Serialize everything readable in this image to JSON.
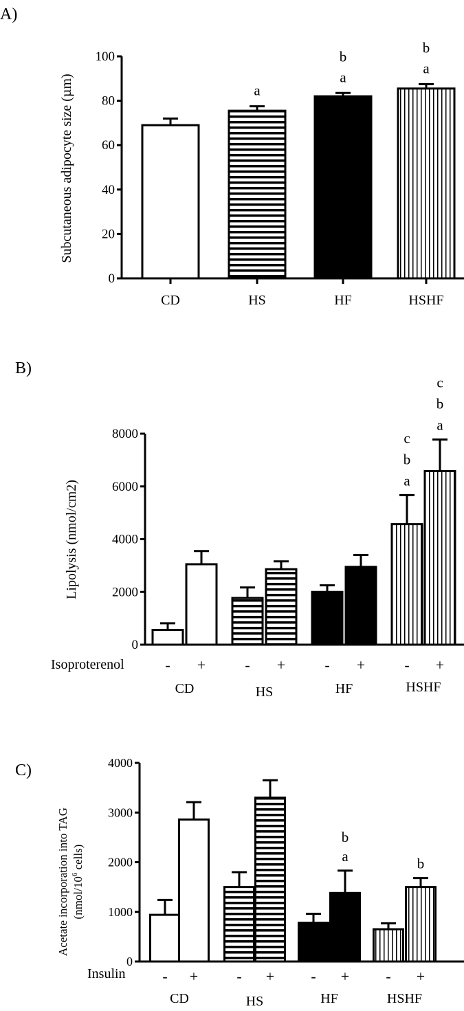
{
  "chart_data": [
    {
      "panel_label": "A)",
      "type": "bar",
      "ylabel": "Subcutaneous adipocyte size (µm)",
      "yticks": [
        "0",
        "20",
        "40",
        "60",
        "80",
        "100"
      ],
      "ylim": [
        0,
        100
      ],
      "categories": [
        "CD",
        "HS",
        "HF",
        "HSHF"
      ],
      "values": [
        69,
        75.5,
        82,
        85.5
      ],
      "errors": [
        3,
        2,
        1.5,
        2
      ],
      "patterns": [
        "white",
        "hlines",
        "black",
        "vlines"
      ],
      "annotations": [
        [],
        [
          "a"
        ],
        [
          "b",
          "a"
        ],
        [
          "b",
          "a"
        ]
      ]
    },
    {
      "panel_label": "B)",
      "type": "bar",
      "ylabel": "Lipolysis (nmol/cm2)",
      "yticks": [
        "0",
        "2000",
        "4000",
        "6000",
        "8000"
      ],
      "ylim": [
        0,
        8000
      ],
      "treatment_label": "Isoproterenol",
      "signs": [
        "-",
        "+"
      ],
      "groups": [
        "CD",
        "HS",
        "HF",
        "HSHF"
      ],
      "series": [
        {
          "values": [
            560,
            1770,
            2000,
            4570
          ]
        },
        {
          "values": [
            3050,
            2860,
            2950,
            6580
          ]
        }
      ],
      "errors": [
        [
          250,
          400,
          250,
          1100
        ],
        [
          500,
          300,
          450,
          1200
        ]
      ],
      "patterns": [
        "white",
        "hlines",
        "black",
        "vlines"
      ],
      "annotations": [
        [
          [],
          []
        ],
        [
          [],
          []
        ],
        [
          [],
          []
        ],
        [
          [
            "c",
            "b",
            "a"
          ],
          [
            "c",
            "b",
            "a"
          ]
        ]
      ]
    },
    {
      "panel_label": "C)",
      "type": "bar",
      "ylabel_line1": "Acetate incorporation into TAG",
      "ylabel_line2_prefix": "(nmol/10",
      "ylabel_line2_sup": "6",
      "ylabel_line2_suffix": " cells)",
      "yticks": [
        "0",
        "1000",
        "2000",
        "3000",
        "4000"
      ],
      "ylim": [
        0,
        4000
      ],
      "treatment_label": "Insulin",
      "signs": [
        "-",
        "+"
      ],
      "groups": [
        "CD",
        "HS",
        "HF",
        "HSHF"
      ],
      "series": [
        {
          "values": [
            940,
            1500,
            780,
            650
          ]
        },
        {
          "values": [
            2860,
            3300,
            1380,
            1500
          ]
        }
      ],
      "errors": [
        [
          300,
          300,
          180,
          120
        ],
        [
          350,
          350,
          450,
          180
        ]
      ],
      "patterns": [
        "white",
        "hlines",
        "black",
        "vlines"
      ],
      "annotations": [
        [
          [],
          []
        ],
        [
          [],
          []
        ],
        [
          [],
          [
            "b",
            "a"
          ]
        ],
        [
          [],
          [
            "b"
          ]
        ]
      ]
    }
  ]
}
